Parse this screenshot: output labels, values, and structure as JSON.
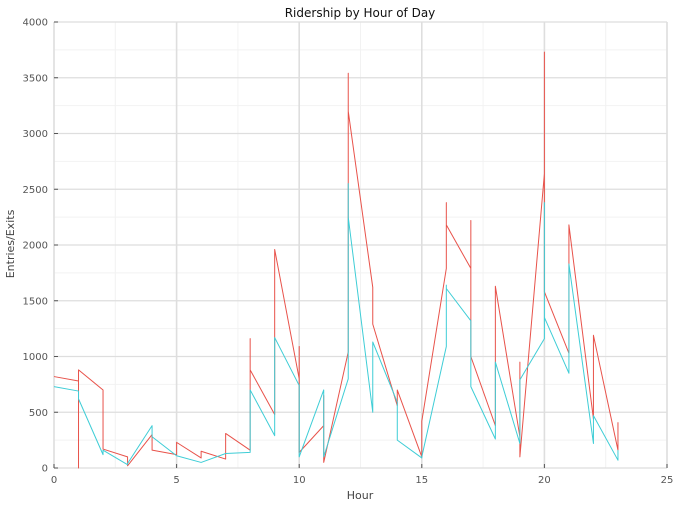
{
  "chart_data": {
    "type": "line",
    "title": "Ridership by Hour of Day",
    "xlabel": "Hour",
    "ylabel": "Entries/Exits",
    "xlim": [
      0,
      25
    ],
    "ylim": [
      0,
      4000
    ],
    "xticks": [
      0,
      5,
      10,
      15,
      20,
      25
    ],
    "yticks": [
      0,
      500,
      1000,
      1500,
      2000,
      2500,
      3000,
      3500,
      4000
    ],
    "grid": true,
    "legend": "none",
    "series": [
      {
        "color": "#e8524a",
        "x": [
          0,
          1,
          1,
          1,
          2,
          2,
          3,
          3,
          4,
          4,
          5,
          5,
          6,
          6,
          7,
          7,
          8,
          8,
          8,
          9,
          9,
          10,
          10,
          10,
          11,
          11,
          11,
          12,
          12,
          12,
          13,
          13,
          14,
          14,
          15,
          15,
          16,
          16,
          16,
          17,
          17,
          17,
          18,
          18,
          19,
          19,
          19,
          20,
          20,
          20,
          21,
          21,
          22,
          22,
          23,
          23
        ],
        "y": [
          820,
          780,
          0,
          880,
          700,
          170,
          100,
          20,
          300,
          160,
          120,
          230,
          90,
          150,
          80,
          310,
          160,
          1160,
          880,
          480,
          1960,
          800,
          1090,
          140,
          380,
          650,
          50,
          1040,
          3540,
          3200,
          1620,
          1290,
          560,
          700,
          100,
          420,
          1790,
          2380,
          2180,
          1790,
          2220,
          1000,
          380,
          1630,
          280,
          950,
          100,
          2640,
          3730,
          1580,
          1030,
          2180,
          440,
          1190,
          160,
          410
        ]
      },
      {
        "color": "#3ecdd6",
        "x": [
          0,
          1,
          1,
          2,
          2,
          3,
          3,
          4,
          4,
          5,
          6,
          7,
          8,
          8,
          9,
          9,
          10,
          10,
          11,
          11,
          12,
          12,
          12,
          13,
          13,
          14,
          14,
          15,
          15,
          16,
          16,
          16,
          17,
          17,
          18,
          18,
          19,
          19,
          20,
          20,
          20,
          21,
          21,
          22,
          22,
          23,
          23
        ],
        "y": [
          730,
          690,
          620,
          120,
          160,
          30,
          40,
          380,
          280,
          110,
          50,
          130,
          140,
          700,
          290,
          1170,
          740,
          100,
          700,
          100,
          800,
          2550,
          2250,
          500,
          1130,
          590,
          250,
          90,
          100,
          1090,
          1640,
          1610,
          1320,
          730,
          260,
          950,
          220,
          790,
          1160,
          2380,
          1350,
          850,
          1830,
          220,
          470,
          70,
          160
        ]
      }
    ]
  }
}
